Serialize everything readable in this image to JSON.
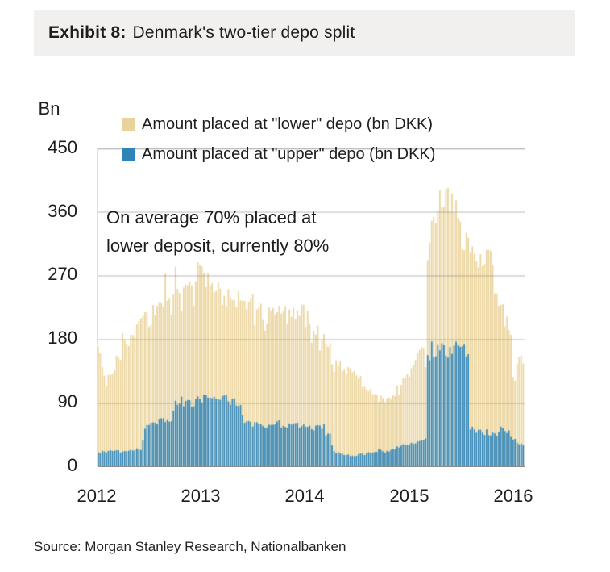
{
  "title": {
    "exhibit_label": "Exhibit 8:",
    "text": "Denmark's two-tier depo split"
  },
  "chart": {
    "unit_label": "Bn",
    "y_ticks": [
      "450",
      "360",
      "270",
      "180",
      "90",
      "0"
    ],
    "x_ticks": [
      "2012",
      "2013",
      "2014",
      "2015",
      "2016"
    ],
    "legend": [
      {
        "label": "Amount placed at \"lower\" depo (bn DKK)",
        "color": "#ead39a"
      },
      {
        "label": "Amount placed at \"upper\" depo (bn DKK)",
        "color": "#2e84b8"
      }
    ],
    "annotation": {
      "line1": "On average 70% placed at",
      "line2": "lower deposit, currently 80%"
    }
  },
  "chart_data": {
    "type": "bar",
    "title": "Denmark's two-tier depo split",
    "ylabel": "Bn",
    "ylim": [
      0,
      450
    ],
    "grid": true,
    "gridline_values": [
      90,
      180,
      270,
      360,
      450
    ],
    "legend_position": "top-left",
    "x_start": "2012-01",
    "x_end": "2016-02",
    "resolution": "semi-monthly (2 values per month, Jan 2012 - Feb 2016)",
    "annotation": "On average 70% placed at lower deposit, currently 80%",
    "series": [
      {
        "name": "Amount placed at \"lower\" depo (bn DKK)",
        "color": "#ead39a",
        "values": [
          168,
          135,
          120,
          128,
          148,
          158,
          172,
          180,
          192,
          200,
          202,
          208,
          212,
          218,
          222,
          232,
          242,
          252,
          258,
          250,
          245,
          252,
          258,
          272,
          275,
          268,
          258,
          252,
          248,
          242,
          238,
          236,
          235,
          232,
          228,
          232,
          236,
          230,
          222,
          218,
          214,
          218,
          222,
          218,
          214,
          210,
          222,
          228,
          218,
          210,
          202,
          196,
          188,
          178,
          168,
          158,
          148,
          142,
          136,
          132,
          126,
          122,
          117,
          112,
          106,
          100,
          96,
          92,
          93,
          97,
          108,
          118,
          128,
          138,
          148,
          158,
          162,
          300,
          355,
          372,
          382,
          376,
          372,
          365,
          340,
          325,
          315,
          308,
          306,
          298,
          293,
          302,
          268,
          248,
          225,
          205,
          178,
          128,
          152,
          148
        ]
      },
      {
        "name": "Amount placed at \"upper\" depo (bn DKK)",
        "color": "#2e84b8",
        "values": [
          20,
          22,
          21,
          23,
          24,
          22,
          21,
          23,
          24,
          25,
          24,
          58,
          63,
          66,
          64,
          67,
          65,
          63,
          90,
          94,
          95,
          92,
          90,
          94,
          96,
          99,
          97,
          94,
          92,
          95,
          96,
          93,
          91,
          88,
          66,
          62,
          60,
          63,
          58,
          56,
          61,
          64,
          62,
          58,
          57,
          60,
          62,
          58,
          59,
          56,
          55,
          57,
          56,
          53,
          50,
          21,
          20,
          18,
          17,
          16,
          16,
          18,
          19,
          20,
          21,
          22,
          23,
          21,
          23,
          26,
          29,
          32,
          33,
          35,
          36,
          38,
          39,
          160,
          164,
          166,
          168,
          165,
          163,
          166,
          169,
          167,
          164,
          55,
          52,
          50,
          51,
          48,
          46,
          49,
          51,
          47,
          44,
          40,
          34,
          30
        ]
      }
    ]
  },
  "source": {
    "text": "Source: Morgan Stanley Research, Nationalbanken"
  }
}
